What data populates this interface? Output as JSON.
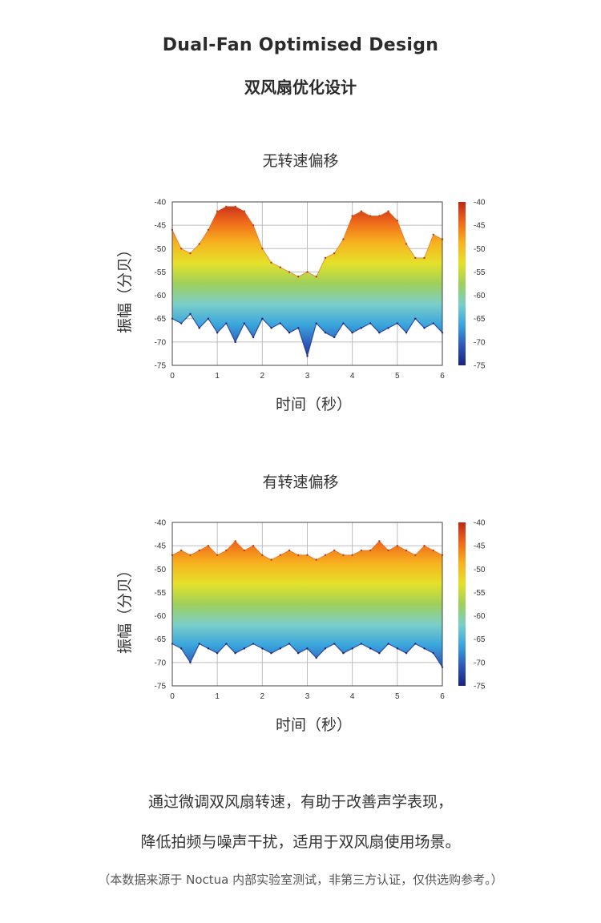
{
  "header": {
    "title_en": "Dual-Fan Optimised Design",
    "title_zh": "双风扇优化设计"
  },
  "chart_data": [
    {
      "type": "area",
      "title": "无转速偏移",
      "xlabel": "时间（秒）",
      "ylabel": "振幅（分贝）",
      "xlim": [
        0,
        6
      ],
      "ylim": [
        -75,
        -40
      ],
      "xticks": [
        "0",
        "1",
        "2",
        "3",
        "4",
        "5",
        "6"
      ],
      "yticks": [
        "-40",
        "-45",
        "-50",
        "-55",
        "-60",
        "-65",
        "-70",
        "-75"
      ],
      "colorbar_ticks": [
        "-40",
        "-45",
        "-50",
        "-55",
        "-60",
        "-65",
        "-70",
        "-75"
      ],
      "colormap": [
        "#1a237e",
        "#2e59b8",
        "#3aa6dd",
        "#7ccfc9",
        "#9fcf5a",
        "#e4e12a",
        "#f7b21f",
        "#ef6a1a",
        "#c0271b"
      ],
      "grid": true,
      "x": [
        0.0,
        0.2,
        0.4,
        0.6,
        0.8,
        1.0,
        1.2,
        1.4,
        1.6,
        1.8,
        2.0,
        2.2,
        2.4,
        2.6,
        2.8,
        3.0,
        3.2,
        3.4,
        3.6,
        3.8,
        4.0,
        4.2,
        4.4,
        4.6,
        4.8,
        5.0,
        5.2,
        5.4,
        5.6,
        5.8,
        6.0
      ],
      "upper": [
        -46,
        -50,
        -51,
        -49,
        -46,
        -42,
        -41,
        -41,
        -42,
        -45,
        -50,
        -53,
        -54,
        -55,
        -56,
        -55,
        -56,
        -52,
        -51,
        -48,
        -43,
        -42,
        -43,
        -43,
        -42,
        -44,
        -49,
        -52,
        -52,
        -47,
        -48
      ],
      "lower": [
        -65,
        -66,
        -64,
        -67,
        -65,
        -68,
        -66,
        -70,
        -66,
        -69,
        -65,
        -67,
        -66,
        -68,
        -67,
        -73,
        -66,
        -68,
        -69,
        -66,
        -68,
        -67,
        -66,
        -68,
        -67,
        -66,
        -68,
        -65,
        -67,
        -66,
        -68
      ]
    },
    {
      "type": "area",
      "title": "有转速偏移",
      "xlabel": "时间（秒）",
      "ylabel": "振幅（分贝）",
      "xlim": [
        0,
        6
      ],
      "ylim": [
        -75,
        -40
      ],
      "xticks": [
        "0",
        "1",
        "2",
        "3",
        "4",
        "5",
        "6"
      ],
      "yticks": [
        "-40",
        "-45",
        "-50",
        "-55",
        "-60",
        "-65",
        "-70",
        "-75"
      ],
      "colorbar_ticks": [
        "-40",
        "-45",
        "-50",
        "-55",
        "-60",
        "-65",
        "-70",
        "-75"
      ],
      "colormap": [
        "#1a237e",
        "#2e59b8",
        "#3aa6dd",
        "#7ccfc9",
        "#9fcf5a",
        "#e4e12a",
        "#f7b21f",
        "#ef6a1a",
        "#c0271b"
      ],
      "grid": true,
      "x": [
        0.0,
        0.2,
        0.4,
        0.6,
        0.8,
        1.0,
        1.2,
        1.4,
        1.6,
        1.8,
        2.0,
        2.2,
        2.4,
        2.6,
        2.8,
        3.0,
        3.2,
        3.4,
        3.6,
        3.8,
        4.0,
        4.2,
        4.4,
        4.6,
        4.8,
        5.0,
        5.2,
        5.4,
        5.6,
        5.8,
        6.0
      ],
      "upper": [
        -47,
        -46,
        -47,
        -46,
        -45,
        -47,
        -46,
        -44,
        -46,
        -45,
        -47,
        -48,
        -47,
        -46,
        -47,
        -47,
        -48,
        -47,
        -46,
        -47,
        -47,
        -46,
        -46,
        -44,
        -46,
        -45,
        -46,
        -47,
        -45,
        -46,
        -47
      ],
      "lower": [
        -66,
        -67,
        -70,
        -66,
        -67,
        -68,
        -66,
        -68,
        -67,
        -66,
        -67,
        -68,
        -67,
        -66,
        -68,
        -67,
        -69,
        -67,
        -66,
        -68,
        -67,
        -66,
        -67,
        -68,
        -66,
        -67,
        -68,
        -66,
        -67,
        -68,
        -71
      ]
    }
  ],
  "description": {
    "line1": "通过微调双风扇转速，有助于改善声学表现，",
    "line2": "降低拍频与噪声干扰，适用于双风扇使用场景。",
    "note": "（本数据来源于 Noctua 内部实验室测试，非第三方认证，仅供选购参考。）"
  }
}
